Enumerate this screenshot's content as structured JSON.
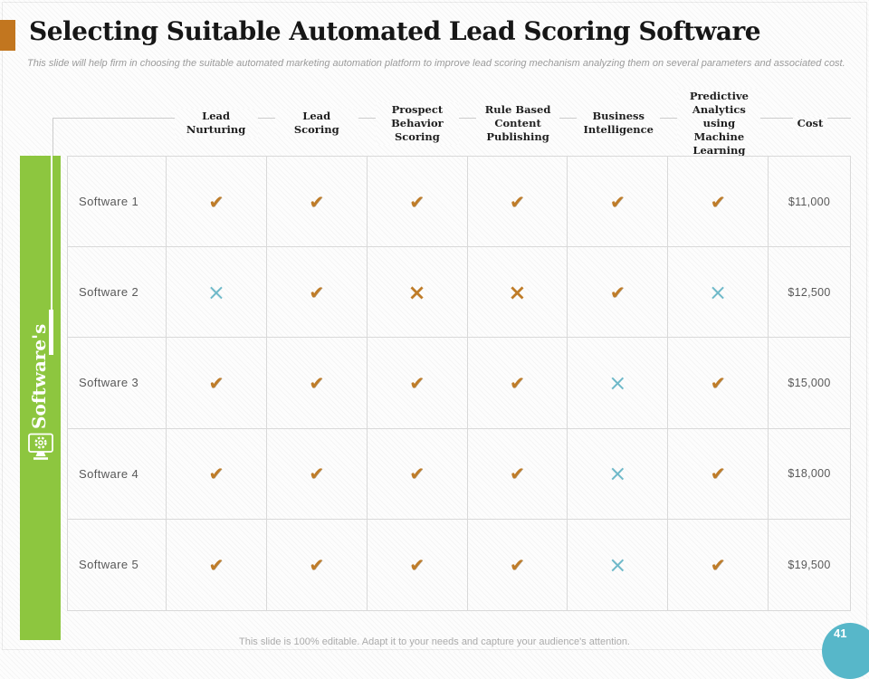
{
  "slide": {
    "title": "Selecting Suitable Automated Lead Scoring Software",
    "subtitle": "This slide will help firm in choosing the suitable automated marketing automation platform to improve lead scoring mechanism analyzing them on several parameters and associated cost.",
    "footer_note": "This slide is 100% editable. Adapt it to your needs and capture your audience's attention.",
    "page_number": "41"
  },
  "sidebar": {
    "label": "Software's",
    "icon": "monitor-gear-icon"
  },
  "table": {
    "columns": [
      "Lead Nurturing",
      "Lead Scoring",
      "Prospect Behavior Scoring",
      "Rule Based Content Publishing",
      "Business Intelligence",
      "Predictive Analytics using Machine Learning",
      "Cost"
    ],
    "rows": [
      {
        "name": "Software 1",
        "marks": [
          "check",
          "check",
          "check",
          "check",
          "check",
          "check"
        ],
        "cost": "$11,000"
      },
      {
        "name": "Software 2",
        "marks": [
          "cross-blue",
          "check",
          "cross-orange",
          "cross-orange",
          "check",
          "cross-blue"
        ],
        "cost": "$12,500"
      },
      {
        "name": "Software 3",
        "marks": [
          "check",
          "check",
          "check",
          "check",
          "cross-blue",
          "check"
        ],
        "cost": "$15,000"
      },
      {
        "name": "Software 4",
        "marks": [
          "check",
          "check",
          "check",
          "check",
          "cross-blue",
          "check"
        ],
        "cost": "$18,000"
      },
      {
        "name": "Software 5",
        "marks": [
          "check",
          "check",
          "check",
          "check",
          "cross-blue",
          "check"
        ],
        "cost": "$19,500"
      }
    ],
    "mark_legend": {
      "check": "feature supported (orange check)",
      "cross-orange": "feature not supported (orange cross)",
      "cross-blue": "feature not supported (blue cross)"
    }
  },
  "colors": {
    "green": "#8dc63f",
    "orange": "#bf7c28",
    "teal": "#6fb9c9",
    "title_bar_orange": "#c2761f"
  }
}
